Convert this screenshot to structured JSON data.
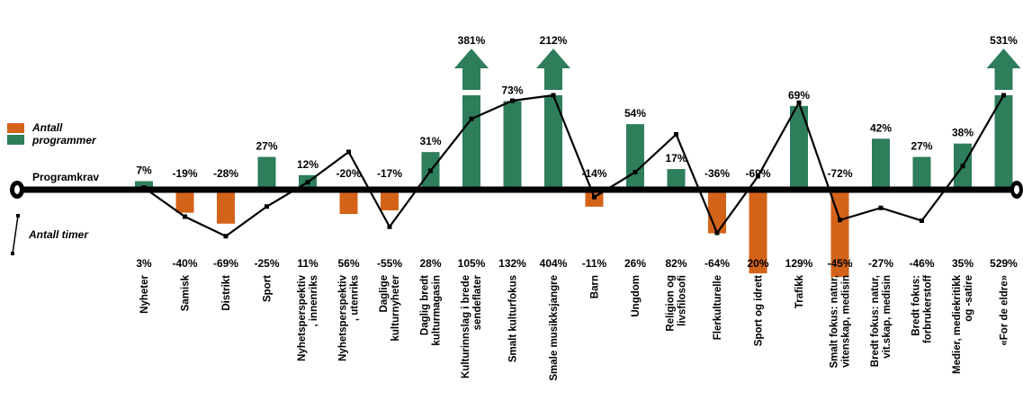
{
  "chart_data": {
    "type": "bar",
    "title": "",
    "categories": [
      "Nyheter",
      "Samisk",
      "Distrikt",
      "Sport",
      "Nyhetsperspektiv\n, innenriks",
      "Nyhetsperspektiv\n, utenriks",
      "Daglige\nkulturnyheter",
      "Daglig bredt\nkulturmagasin",
      "Kulturinnslag i brede\nsendeflater",
      "Smalt kulturfokus",
      "Smale musikksjangre",
      "Barn",
      "Ungdom",
      "Religion og\nlivsfilosofi",
      "Flerkulturelle",
      "Sport og idrett",
      "Trafikk",
      "Smalt fokus: natur,\nvitenskap, medisin",
      "Bredt fokus: natur,\nvit.skap, medisin",
      "Bredt fokus:\nforbrukerstoff",
      "Medier, mediekritikk\nog -satire",
      "«For de eldre»"
    ],
    "series": [
      {
        "name": "Antall programmer",
        "values": [
          7,
          -19,
          -28,
          27,
          12,
          -20,
          -17,
          31,
          381,
          73,
          212,
          -14,
          54,
          17,
          -36,
          -69,
          69,
          -72,
          42,
          27,
          38,
          531
        ],
        "labels": [
          "7%",
          "-19%",
          "-28%",
          "27%",
          "12%",
          "-20%",
          "-17%",
          "31%",
          "381%",
          "73%",
          "212%",
          "-14%",
          "54%",
          "17%",
          "-36%",
          "-69%",
          "69%",
          "-72%",
          "42%",
          "27%",
          "38%",
          "531%"
        ]
      },
      {
        "name": "Antall timer",
        "values": [
          3,
          -40,
          -69,
          -25,
          11,
          56,
          -55,
          28,
          105,
          132,
          404,
          -11,
          26,
          82,
          -64,
          20,
          129,
          -45,
          -27,
          -46,
          35,
          529
        ],
        "labels": [
          "3%",
          "-40%",
          "-69%",
          "-25%",
          "11%",
          "56%",
          "-55%",
          "28%",
          "105%",
          "132%",
          "404%",
          "-11%",
          "26%",
          "82%",
          "-64%",
          "20%",
          "129%",
          "-45%",
          "-27%",
          "-46%",
          "35%",
          "529%"
        ]
      }
    ],
    "truncated_categories": [
      "Kulturinnslag i brede\nsendeflater",
      "Smale musikksjangre",
      "«For de eldre»"
    ],
    "baseline_label": "Programkrav",
    "colors": {
      "positive": "#2e7d5b",
      "negative": "#d4631a",
      "baseline": "#000000",
      "line": "#000000"
    },
    "legend": {
      "placement": "left",
      "items": [
        {
          "label": "Antall\nprogrammer",
          "color": "#2e7d5b",
          "secondary_color": "#d4631a"
        },
        {
          "label": "Antall timer",
          "marker": "line"
        }
      ]
    }
  }
}
